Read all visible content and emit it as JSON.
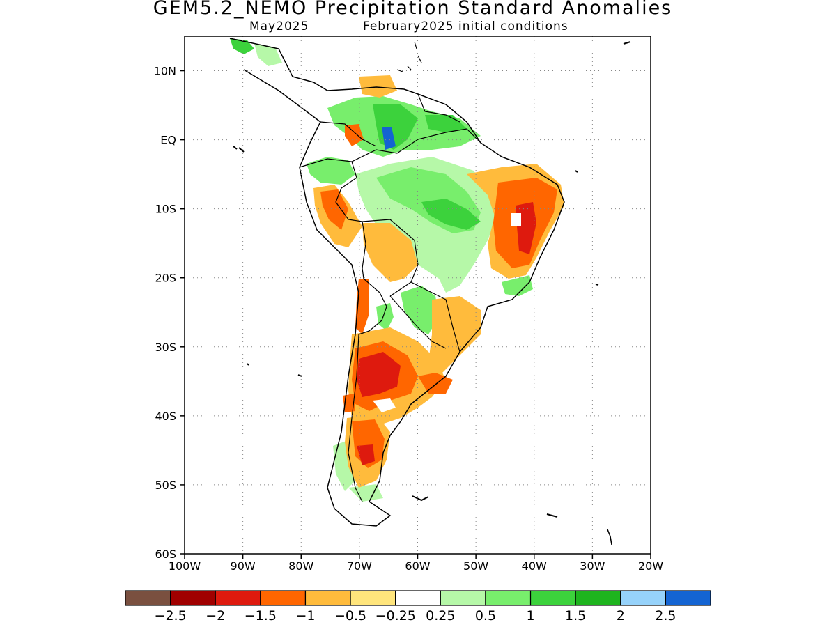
{
  "title": "GEM5.2_NEMO Precipitation Standard Anomalies",
  "subtitle_month": "May2025",
  "subtitle_init": "February2025 initial conditions",
  "map": {
    "lon_range": [
      -100,
      -20
    ],
    "lat_range": [
      -60,
      15
    ],
    "lat_ticks": [
      "10N",
      "EQ",
      "10S",
      "20S",
      "30S",
      "40S",
      "50S",
      "60S"
    ],
    "lon_ticks": [
      "100W",
      "90W",
      "80W",
      "70W",
      "60W",
      "50W",
      "40W",
      "30W",
      "20W"
    ],
    "grid": "dotted"
  },
  "colorbar": {
    "colors": [
      "#7a5040",
      "#a00000",
      "#de1a0e",
      "#ff6600",
      "#ffbb3c",
      "#ffe57c",
      "#ffffff",
      "#b6f8a8",
      "#78ee6c",
      "#3cd23c",
      "#1eb41e",
      "#96d2fa",
      "#1464d2"
    ],
    "labels": [
      "−2.5",
      "−2",
      "−1.5",
      "−1",
      "−0.5",
      "−0.25",
      "0.25",
      "0.5",
      "1",
      "1.5",
      "2",
      "2.5"
    ]
  },
  "regions": [
    {
      "name": "northeast-brazil-dry",
      "level": -1.5
    },
    {
      "name": "central-argentina-dry",
      "level": -2
    },
    {
      "name": "patagonia-dry",
      "level": -1.5
    },
    {
      "name": "chile-coast-dry",
      "level": -1
    },
    {
      "name": "bolivia-dry",
      "level": -0.5
    },
    {
      "name": "southern-brazil-dry",
      "level": -0.5
    },
    {
      "name": "central-brazil-wet",
      "level": 1
    },
    {
      "name": "venezuela-wet",
      "level": 1
    },
    {
      "name": "paraguay-wet",
      "level": 0.5
    },
    {
      "name": "southern-chile-wet",
      "level": 0.5
    },
    {
      "name": "ecuador-wet",
      "level": 1
    }
  ]
}
